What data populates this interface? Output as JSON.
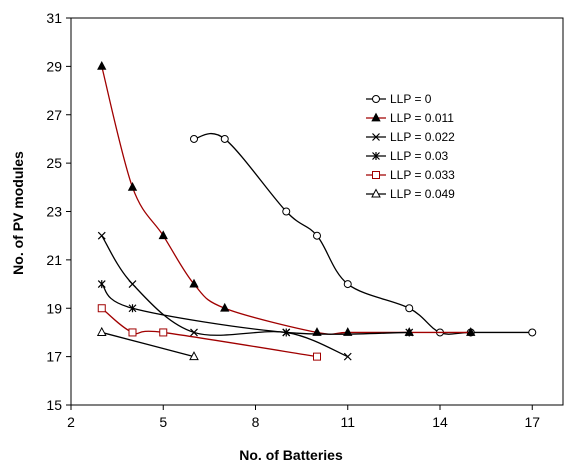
{
  "chart_data": {
    "type": "line",
    "title": "",
    "xlabel": "No. of Batteries",
    "ylabel": "No. of PV modules",
    "xlim": [
      2,
      18
    ],
    "ylim": [
      15,
      31
    ],
    "x_ticks": [
      2,
      5,
      8,
      11,
      14,
      17
    ],
    "y_ticks": [
      15,
      17,
      19,
      21,
      23,
      25,
      27,
      29,
      31
    ],
    "grid": false,
    "legend_position": "right",
    "series": [
      {
        "name": "LLP = 0",
        "marker": "circle-open",
        "color": "#000000",
        "x": [
          6,
          7,
          9,
          10,
          11,
          13,
          14,
          15,
          17
        ],
        "y": [
          26,
          26,
          23,
          22,
          20,
          19,
          18,
          18,
          18
        ]
      },
      {
        "name": "LLP = 0.011",
        "marker": "triangle-filled",
        "color": "#a00000",
        "x": [
          3,
          4,
          5,
          6,
          7,
          10,
          11,
          13,
          15
        ],
        "y": [
          29,
          24,
          22,
          20,
          19,
          18,
          18,
          18,
          18
        ]
      },
      {
        "name": "LLP = 0.022",
        "marker": "x",
        "color": "#000000",
        "x": [
          3,
          4,
          6,
          9,
          11
        ],
        "y": [
          22,
          20,
          18,
          18,
          17
        ]
      },
      {
        "name": "LLP = 0.03",
        "marker": "star",
        "color": "#000000",
        "x": [
          3,
          4,
          9,
          13
        ],
        "y": [
          20,
          19,
          18,
          18
        ]
      },
      {
        "name": "LLP = 0.033",
        "marker": "square-open",
        "color": "#a00000",
        "x": [
          3,
          4,
          5,
          10
        ],
        "y": [
          19,
          18,
          18,
          17
        ]
      },
      {
        "name": "LLP = 0.049",
        "marker": "triangle-open",
        "color": "#000000",
        "x": [
          3,
          6
        ],
        "y": [
          18,
          17
        ]
      }
    ]
  }
}
